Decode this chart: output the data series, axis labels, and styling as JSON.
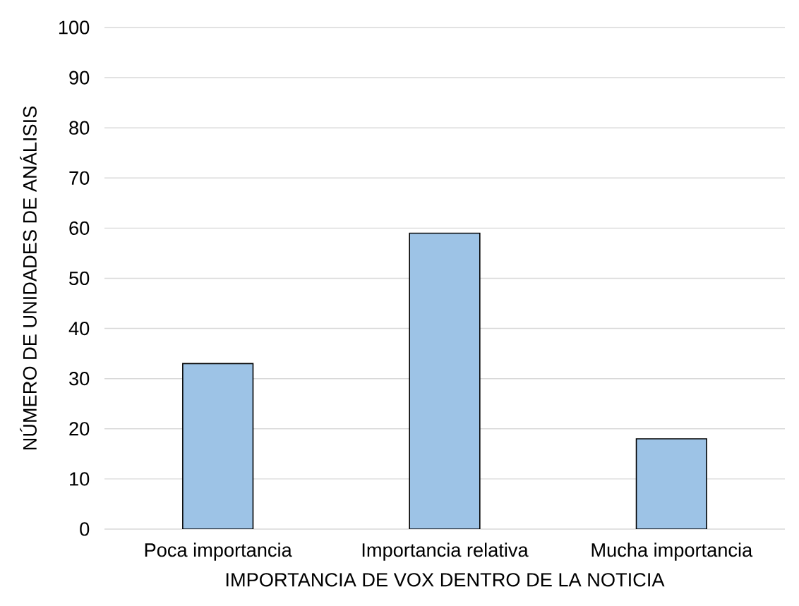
{
  "chart_data": {
    "type": "bar",
    "xlabel": "IMPORTANCIA DE VOX DENTRO DE LA NOTICIA",
    "ylabel": "NÚMERO DE UNIDADES DE ANÁLISIS",
    "categories": [
      "Poca importancia",
      "Importancia relativa",
      "Mucha importancia"
    ],
    "values": [
      33,
      59,
      18
    ],
    "color": "#9dc3e6",
    "ylim": [
      0,
      100
    ],
    "yticks": [
      0,
      10,
      20,
      30,
      40,
      50,
      60,
      70,
      80,
      90,
      100
    ],
    "grid": "y"
  }
}
